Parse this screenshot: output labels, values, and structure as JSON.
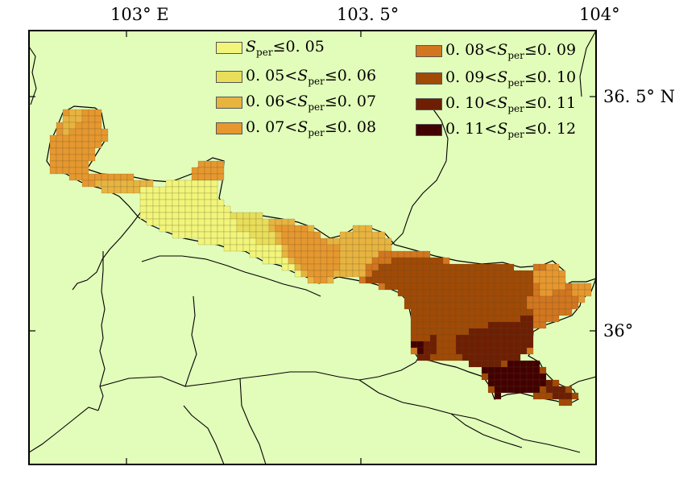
{
  "axes": {
    "x_ticks": [
      {
        "label": "103° E",
        "value": 103.0
      },
      {
        "label": "103. 5°",
        "value": 103.5
      },
      {
        "label": "104°",
        "value": 104.0
      }
    ],
    "y_ticks": [
      {
        "label": "36. 5° N",
        "value": 36.5
      },
      {
        "label": "36°",
        "value": 36.0
      }
    ],
    "x_range": [
      102.79,
      104.0
    ],
    "y_range": [
      35.72,
      36.64
    ]
  },
  "legend": {
    "entries": [
      {
        "lower": "",
        "upper": "0. 05",
        "color": "#f1f57a"
      },
      {
        "lower": "0. 05",
        "upper": "0. 06",
        "color": "#e9de5a"
      },
      {
        "lower": "0. 06",
        "upper": "0. 07",
        "color": "#e8b440"
      },
      {
        "lower": "0. 07",
        "upper": "0. 08",
        "color": "#e6982f"
      },
      {
        "lower": "0. 08",
        "upper": "0. 09",
        "color": "#d2761f"
      },
      {
        "lower": "0. 09",
        "upper": "0. 10",
        "color": "#a04a06"
      },
      {
        "lower": "0. 10",
        "upper": "0. 11",
        "color": "#6e1e02"
      },
      {
        "lower": "0. 11",
        "upper": "0. 12",
        "color": "#420000"
      }
    ],
    "symbol": "S",
    "subscript": "per",
    "leq": "≤",
    "lt": "<"
  },
  "colors": {
    "land": "#e2fdba",
    "frame": "#000000",
    "grid_line": "#5a4a2a"
  },
  "chart_data": {
    "type": "heatmap",
    "title": "",
    "xlabel": "",
    "ylabel": "",
    "variable": "S_per",
    "classes": [
      "≤0.05",
      "0.05–0.06",
      "0.06–0.07",
      "0.07–0.08",
      "0.08–0.09",
      "0.09–0.10",
      "0.10–0.11",
      "0.11–0.12"
    ],
    "xlim": [
      102.79,
      104.0
    ],
    "ylim": [
      35.72,
      36.64
    ]
  }
}
